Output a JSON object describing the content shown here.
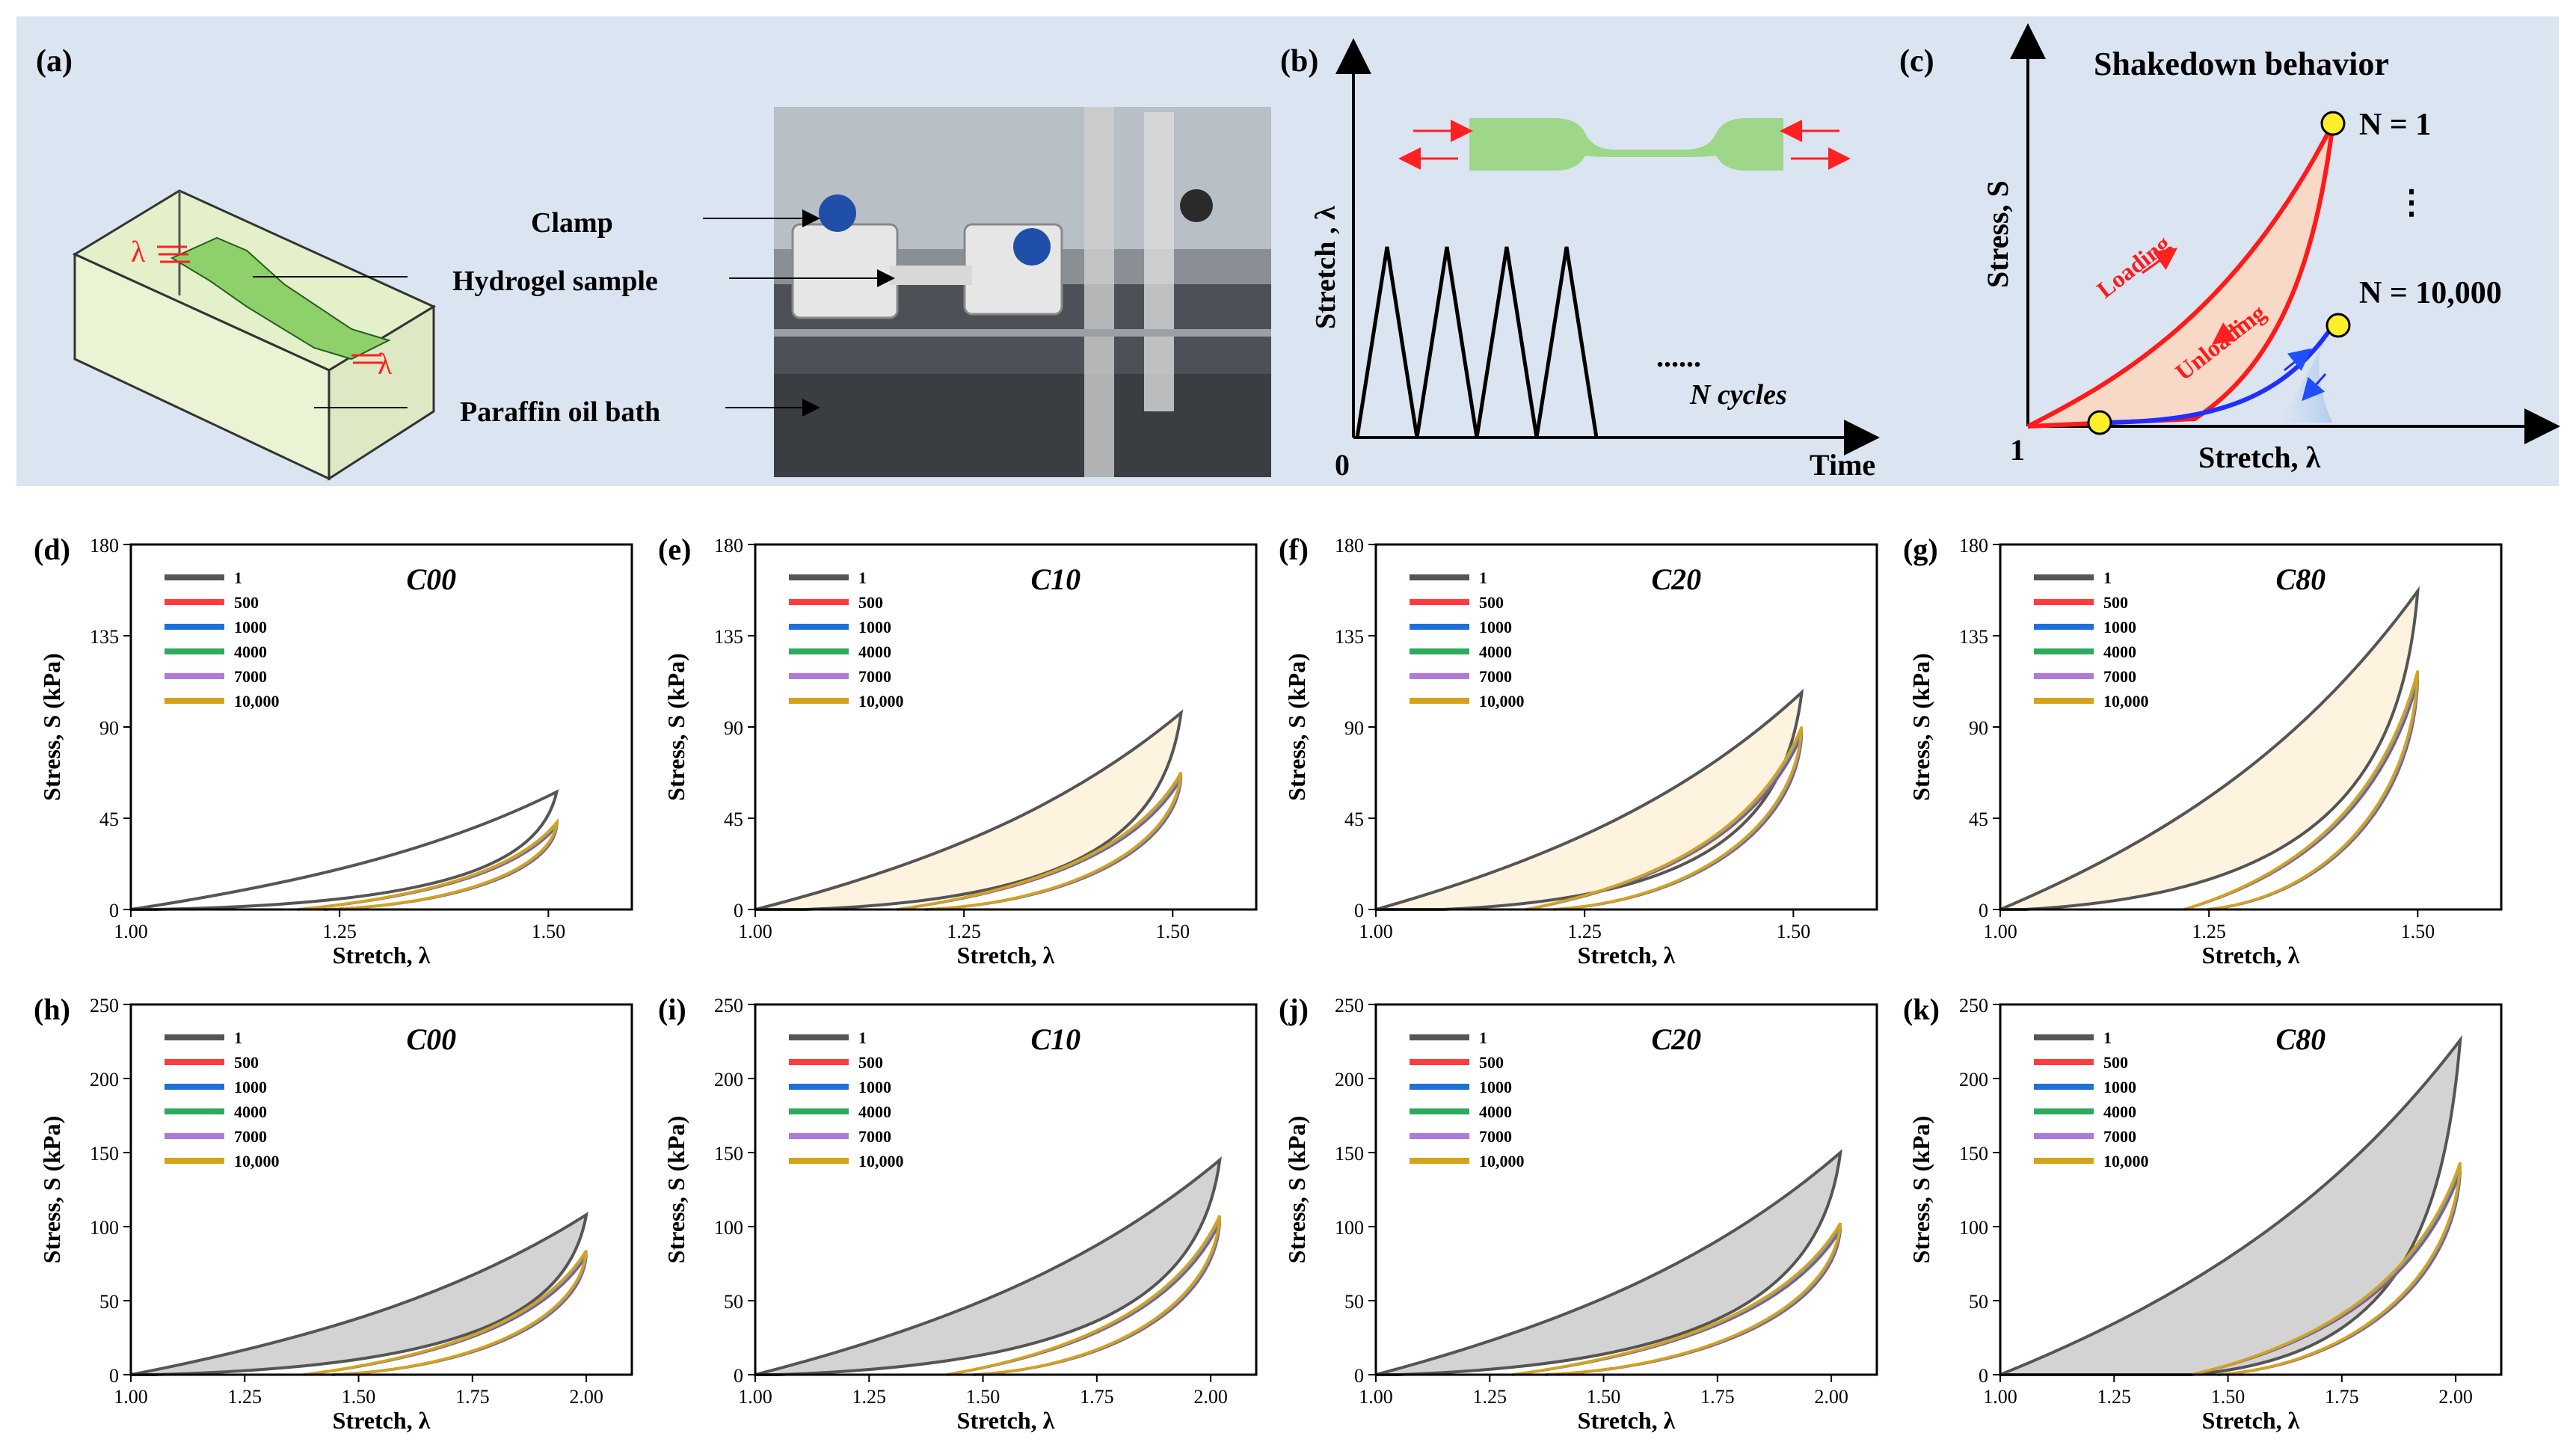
{
  "top_panel": {
    "a": {
      "label": "(a)",
      "lambda": "λ",
      "callouts": [
        "Clamp",
        "Hydrogel sample",
        "Paraffin oil bath"
      ]
    },
    "b": {
      "label": "(b)",
      "ylabel": "Stretch , λ",
      "xlabel": "Time",
      "origin": "0",
      "dots": "......",
      "cycles_label": "N cycles"
    },
    "c": {
      "label": "(c)",
      "title": "Shakedown behavior",
      "ylabel": "Stress, S",
      "xlabel": "Stretch, λ",
      "origin": "1",
      "loading": "Loading",
      "unloading": "Unloading",
      "n1": "N = 1",
      "n10000": "N = 10,000",
      "vdots": "⋮"
    }
  },
  "colors": {
    "panel_bg": "#dbe4f1",
    "loop_fill_light": "#fdf3df",
    "loop_fill_gray": "#d3d3d3",
    "series": [
      "#555555",
      "#ff3b3b",
      "#1f6fdb",
      "#2eaa5c",
      "#b07ad9",
      "#d6a21a"
    ]
  },
  "legend_items": [
    "1",
    "500",
    "1000",
    "4000",
    "7000",
    "10,000"
  ],
  "chart_data": [
    {
      "id": "d",
      "label": "(d)",
      "type": "line",
      "title": "C00",
      "xlabel": "Stretch, λ",
      "ylabel": "Stress, S (kPa)",
      "xlim": [
        1.0,
        1.6
      ],
      "ylim": [
        0,
        180
      ],
      "xticks": [
        "1.00",
        "1.25",
        "1.50"
      ],
      "yticks": [
        "0",
        "45",
        "90",
        "135",
        "180"
      ],
      "first": {
        "max_x": 1.51,
        "max_y": 58,
        "res_x": 1.03
      },
      "cyclic": {
        "max_y": 42,
        "res_x": 1.2
      },
      "fill": "none"
    },
    {
      "id": "e",
      "label": "(e)",
      "type": "line",
      "title": "C10",
      "xlabel": "Stretch, λ",
      "ylabel": "Stress, S (kPa)",
      "xlim": [
        1.0,
        1.6
      ],
      "ylim": [
        0,
        180
      ],
      "xticks": [
        "1.00",
        "1.25",
        "1.50"
      ],
      "yticks": [
        "0",
        "45",
        "90",
        "135",
        "180"
      ],
      "first": {
        "max_x": 1.51,
        "max_y": 97,
        "res_x": 1.06
      },
      "cyclic": {
        "max_y": 66,
        "res_x": 1.17
      },
      "fill": "light"
    },
    {
      "id": "f",
      "label": "(f)",
      "type": "line",
      "title": "C20",
      "xlabel": "Stretch, λ",
      "ylabel": "Stress, S (kPa)",
      "xlim": [
        1.0,
        1.6
      ],
      "ylim": [
        0,
        180
      ],
      "xticks": [
        "1.00",
        "1.25",
        "1.50"
      ],
      "yticks": [
        "0",
        "45",
        "90",
        "135",
        "180"
      ],
      "first": {
        "max_x": 1.51,
        "max_y": 107,
        "res_x": 1.08
      },
      "cyclic": {
        "max_y": 88,
        "res_x": 1.18
      },
      "fill": "light"
    },
    {
      "id": "g",
      "label": "(g)",
      "type": "line",
      "title": "C80",
      "xlabel": "Stretch, λ",
      "ylabel": "Stress, S (kPa)",
      "xlim": [
        1.0,
        1.6
      ],
      "ylim": [
        0,
        180
      ],
      "xticks": [
        "1.00",
        "1.25",
        "1.50"
      ],
      "yticks": [
        "0",
        "45",
        "90",
        "135",
        "180"
      ],
      "first": {
        "max_x": 1.5,
        "max_y": 157,
        "res_x": 1.03
      },
      "cyclic": {
        "max_y": 115,
        "res_x": 1.22
      },
      "fill": "light"
    },
    {
      "id": "h",
      "label": "(h)",
      "type": "line",
      "title": "C00",
      "xlabel": "Stretch, λ",
      "ylabel": "Stress, S (kPa)",
      "xlim": [
        1.0,
        2.1
      ],
      "ylim": [
        0,
        250
      ],
      "xticks": [
        "1.00",
        "1.25",
        "1.50",
        "1.75",
        "2.00"
      ],
      "yticks": [
        "0",
        "50",
        "100",
        "150",
        "200",
        "250"
      ],
      "first": {
        "max_x": 2.0,
        "max_y": 108,
        "res_x": 1.05
      },
      "cyclic": {
        "max_y": 82,
        "res_x": 1.38
      },
      "fill": "gray"
    },
    {
      "id": "i",
      "label": "(i)",
      "type": "line",
      "title": "C10",
      "xlabel": "Stretch, λ",
      "ylabel": "Stress, S (kPa)",
      "xlim": [
        1.0,
        2.1
      ],
      "ylim": [
        0,
        250
      ],
      "xticks": [
        "1.00",
        "1.25",
        "1.50",
        "1.75",
        "2.00"
      ],
      "yticks": [
        "0",
        "50",
        "100",
        "150",
        "200",
        "250"
      ],
      "first": {
        "max_x": 2.02,
        "max_y": 145,
        "res_x": 1.05
      },
      "cyclic": {
        "max_y": 105,
        "res_x": 1.42
      },
      "fill": "gray"
    },
    {
      "id": "j",
      "label": "(j)",
      "type": "line",
      "title": "C20",
      "xlabel": "Stretch, λ",
      "ylabel": "Stress, S (kPa)",
      "xlim": [
        1.0,
        2.1
      ],
      "ylim": [
        0,
        250
      ],
      "xticks": [
        "1.00",
        "1.25",
        "1.50",
        "1.75",
        "2.00"
      ],
      "yticks": [
        "0",
        "50",
        "100",
        "150",
        "200",
        "250"
      ],
      "first": {
        "max_x": 2.02,
        "max_y": 150,
        "res_x": 1.05
      },
      "cyclic": {
        "max_y": 100,
        "res_x": 1.3
      },
      "fill": "gray"
    },
    {
      "id": "k",
      "label": "(k)",
      "type": "line",
      "title": "C80",
      "xlabel": "Stretch, λ",
      "ylabel": "Stress, S (kPa)",
      "xlim": [
        1.0,
        2.1
      ],
      "ylim": [
        0,
        250
      ],
      "xticks": [
        "1.00",
        "1.25",
        "1.50",
        "1.75",
        "2.00"
      ],
      "yticks": [
        "0",
        "50",
        "100",
        "150",
        "200",
        "250"
      ],
      "first": {
        "max_x": 2.01,
        "max_y": 226,
        "res_x": 1.42
      },
      "cyclic": {
        "max_y": 140,
        "res_x": 1.42
      },
      "fill": "gray"
    }
  ]
}
